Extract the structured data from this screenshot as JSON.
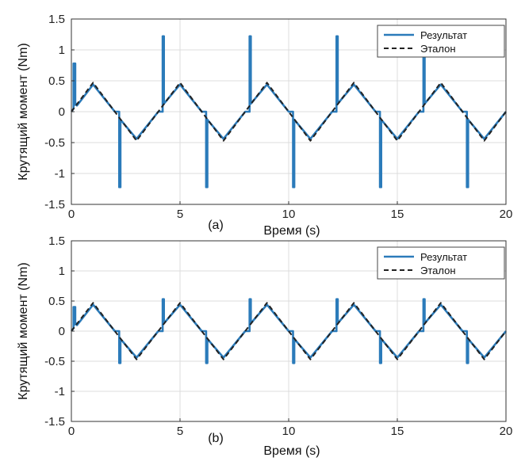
{
  "chart_data": [
    {
      "type": "line",
      "panel_label": "(a)",
      "xlabel": "Время (s)",
      "ylabel": "Крутящий момент (Nm)",
      "xlim": [
        0,
        20
      ],
      "ylim": [
        -1.5,
        1.5
      ],
      "xticks": [
        0,
        5,
        10,
        15,
        20
      ],
      "yticks": [
        -1.5,
        -1,
        -0.5,
        0,
        0.5,
        1,
        1.5
      ],
      "ytick_labels": [
        "-1.5",
        "-1",
        "-0.5",
        "0",
        "0.5",
        "1",
        "1.5"
      ],
      "grid": true,
      "legend_position": "top-right",
      "series": [
        {
          "name": "Результат",
          "style": "solid",
          "color": "#2b7bba",
          "x": [
            0,
            0.1,
            0.1,
            0.18,
            0.18,
            0.26,
            0.26,
            1.0,
            2.0,
            2.2,
            2.2,
            2.26,
            2.26,
            3.0,
            4.0,
            4.2,
            4.2,
            4.26,
            4.26,
            5.0,
            6.0,
            6.2,
            6.2,
            6.26,
            6.26,
            7.0,
            8.0,
            8.2,
            8.2,
            8.26,
            8.26,
            9.0,
            10.0,
            10.2,
            10.2,
            10.26,
            10.26,
            11.0,
            12.0,
            12.2,
            12.2,
            12.26,
            12.26,
            13.0,
            14.0,
            14.2,
            14.2,
            14.26,
            14.26,
            15.0,
            16.0,
            16.2,
            16.2,
            16.26,
            16.26,
            17.0,
            18.0,
            18.2,
            18.2,
            18.26,
            18.26,
            19.0,
            20.0
          ],
          "y": [
            0,
            0.05,
            0.78,
            0.78,
            0.11,
            0.13,
            0.1,
            0.44,
            0.0,
            0.0,
            -1.22,
            -1.22,
            -0.13,
            -0.44,
            0.0,
            0.0,
            1.22,
            1.22,
            0.13,
            0.44,
            0.0,
            0.0,
            -1.22,
            -1.22,
            -0.13,
            -0.44,
            0.0,
            0.0,
            1.22,
            1.22,
            0.13,
            0.44,
            0.0,
            0.0,
            -1.22,
            -1.22,
            -0.13,
            -0.44,
            0.0,
            0.0,
            1.22,
            1.22,
            0.13,
            0.44,
            0.0,
            0.0,
            -1.22,
            -1.22,
            -0.13,
            -0.44,
            0.0,
            0.0,
            1.22,
            1.22,
            0.13,
            0.44,
            0.0,
            0.0,
            -1.22,
            -1.22,
            -0.13,
            -0.44,
            0.0
          ]
        },
        {
          "name": "Эталон",
          "style": "dashed",
          "color": "#222222",
          "x": [
            0,
            1,
            3,
            5,
            7,
            9,
            11,
            13,
            15,
            17,
            19,
            20
          ],
          "y": [
            0,
            0.47,
            -0.47,
            0.47,
            -0.47,
            0.47,
            -0.47,
            0.47,
            -0.47,
            0.47,
            -0.47,
            0
          ]
        }
      ]
    },
    {
      "type": "line",
      "panel_label": "(b)",
      "xlabel": "Время (s)",
      "ylabel": "Крутящий момент (Nm)",
      "xlim": [
        0,
        20
      ],
      "ylim": [
        -1.5,
        1.5
      ],
      "xticks": [
        0,
        5,
        10,
        15,
        20
      ],
      "yticks": [
        -1.5,
        -1,
        -0.5,
        0,
        0.5,
        1,
        1.5
      ],
      "ytick_labels": [
        "-1.5",
        "-1",
        "-0.5",
        "0",
        "0.5",
        "1",
        "1.5"
      ],
      "grid": true,
      "legend_position": "top-right",
      "series": [
        {
          "name": "Результат",
          "style": "solid",
          "color": "#2b7bba",
          "x": [
            0,
            0.1,
            0.1,
            0.18,
            0.18,
            0.26,
            0.26,
            1.0,
            2.0,
            2.2,
            2.2,
            2.26,
            2.26,
            3.0,
            4.0,
            4.2,
            4.2,
            4.26,
            4.26,
            5.0,
            6.0,
            6.2,
            6.2,
            6.26,
            6.26,
            7.0,
            8.0,
            8.2,
            8.2,
            8.26,
            8.26,
            9.0,
            10.0,
            10.2,
            10.2,
            10.26,
            10.26,
            11.0,
            12.0,
            12.2,
            12.2,
            12.26,
            12.26,
            13.0,
            14.0,
            14.2,
            14.2,
            14.26,
            14.26,
            15.0,
            16.0,
            16.2,
            16.2,
            16.26,
            16.26,
            17.0,
            18.0,
            18.2,
            18.2,
            18.26,
            18.26,
            19.0,
            20.0
          ],
          "y": [
            0,
            0.05,
            0.4,
            0.4,
            0.11,
            0.13,
            0.1,
            0.44,
            0.0,
            0.0,
            -0.53,
            -0.53,
            -0.13,
            -0.44,
            0.0,
            0.0,
            0.53,
            0.53,
            0.13,
            0.44,
            0.0,
            0.0,
            -0.53,
            -0.53,
            -0.13,
            -0.44,
            0.0,
            0.0,
            0.53,
            0.53,
            0.13,
            0.44,
            0.0,
            0.0,
            -0.53,
            -0.53,
            -0.13,
            -0.44,
            0.0,
            0.0,
            0.53,
            0.53,
            0.13,
            0.44,
            0.0,
            0.0,
            -0.53,
            -0.53,
            -0.13,
            -0.44,
            0.0,
            0.0,
            0.53,
            0.53,
            0.13,
            0.44,
            0.0,
            0.0,
            -0.53,
            -0.53,
            -0.13,
            -0.44,
            0.0
          ]
        },
        {
          "name": "Эталон",
          "style": "dashed",
          "color": "#222222",
          "x": [
            0,
            1,
            3,
            5,
            7,
            9,
            11,
            13,
            15,
            17,
            19,
            20
          ],
          "y": [
            0,
            0.47,
            -0.47,
            0.47,
            -0.47,
            0.47,
            -0.47,
            0.47,
            -0.47,
            0.47,
            -0.47,
            0
          ]
        }
      ]
    }
  ]
}
